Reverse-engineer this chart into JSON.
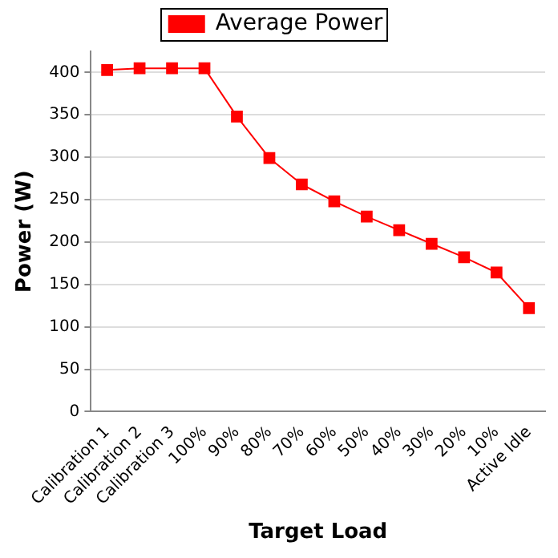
{
  "chart_data": {
    "type": "line",
    "xlabel": "Target Load",
    "ylabel": "Power (W)",
    "categories": [
      "Calibration 1",
      "Calibration 2",
      "Calibration 3",
      "100%",
      "90%",
      "80%",
      "70%",
      "60%",
      "50%",
      "40%",
      "30%",
      "20%",
      "10%",
      "Active Idle"
    ],
    "series": [
      {
        "name": "Average Power",
        "color": "#ff0000",
        "values": [
          403,
          405,
          405,
          405,
          348,
          299,
          268,
          248,
          230,
          214,
          198,
          182,
          164,
          122
        ]
      }
    ],
    "ylim": [
      0,
      425
    ],
    "yticks": [
      0,
      50,
      100,
      150,
      200,
      250,
      300,
      350,
      400
    ],
    "grid": "y",
    "legend": "top",
    "marker": "square",
    "line_style": "solid"
  }
}
